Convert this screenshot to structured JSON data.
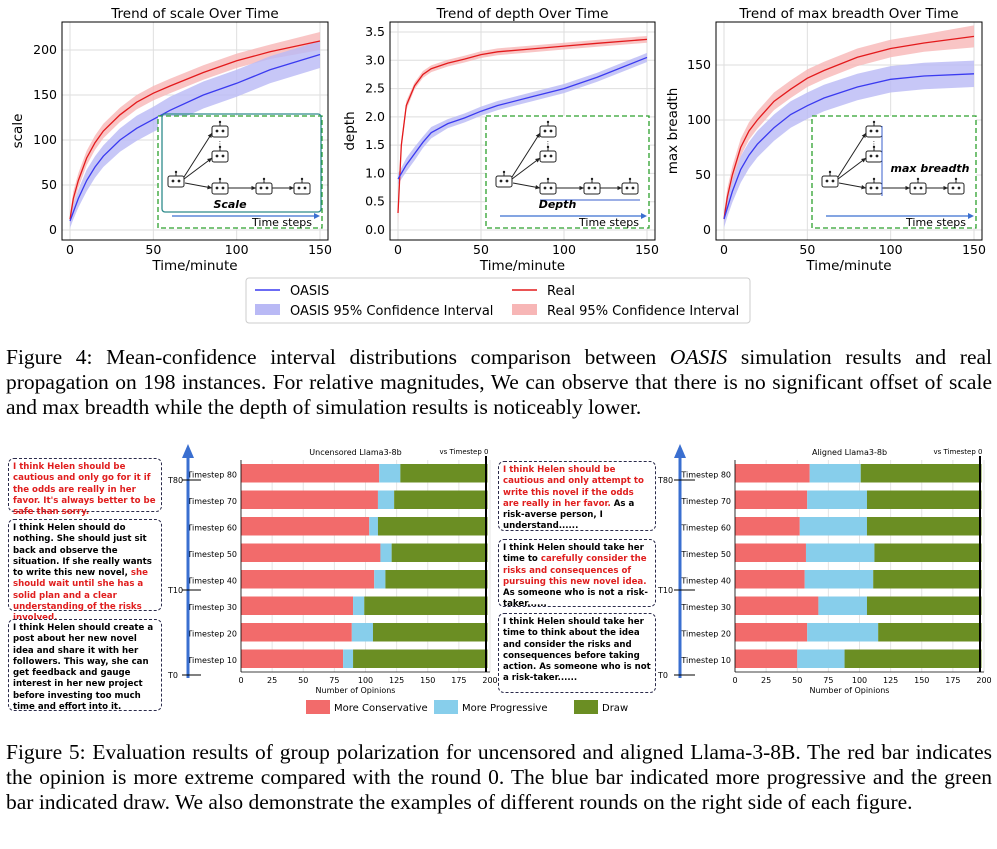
{
  "figure4": {
    "panels": [
      {
        "title": "Trend of scale Over Time",
        "ylabel": "scale",
        "xlabel": "Time/minute",
        "xticks": [
          "0",
          "50",
          "100",
          "150"
        ],
        "yticks": [
          "0",
          "50",
          "100",
          "150",
          "200"
        ],
        "inset_label": "Scale",
        "inset_axis": "Time steps"
      },
      {
        "title": "Trend of depth Over Time",
        "ylabel": "depth",
        "xlabel": "Time/minute",
        "xticks": [
          "0",
          "50",
          "100",
          "150"
        ],
        "yticks": [
          "0.0",
          "0.5",
          "1.0",
          "1.5",
          "2.0",
          "2.5",
          "3.0",
          "3.5"
        ],
        "inset_label": "Depth",
        "inset_axis": "Time steps"
      },
      {
        "title": "Trend of max breadth Over Time",
        "ylabel": "max breadth",
        "xlabel": "Time/minute",
        "xticks": [
          "0",
          "50",
          "100",
          "150"
        ],
        "yticks": [
          "0",
          "50",
          "100",
          "150"
        ],
        "inset_label": "max breadth",
        "inset_axis": "Time steps"
      }
    ],
    "legend": {
      "oasis": "OASIS",
      "oasis_ci": "OASIS 95% Confidence Interval",
      "real": "Real",
      "real_ci": "Real 95% Confidence Interval"
    },
    "caption_prefix": "Figure 4: Mean-confidence interval distributions comparison between ",
    "caption_italic": "OASIS",
    "caption_suffix": " simulation results and real propagation on 198 instances. For relative magnitudes, We can observe that there is no significant offset of scale and max breadth while the depth of simulation results is noticeably lower."
  },
  "chart_data": [
    {
      "type": "line",
      "title": "Trend of scale Over Time",
      "xlabel": "Time/minute",
      "ylabel": "scale",
      "xlim": [
        0,
        150
      ],
      "ylim": [
        0,
        220
      ],
      "x": [
        0,
        2,
        5,
        10,
        15,
        20,
        30,
        40,
        50,
        60,
        80,
        100,
        120,
        150
      ],
      "series": [
        {
          "name": "OASIS",
          "values": [
            10,
            20,
            35,
            55,
            70,
            82,
            100,
            113,
            123,
            133,
            150,
            163,
            178,
            195
          ],
          "ci": [
            8,
            8,
            10,
            12,
            12,
            12,
            13,
            14,
            14,
            15,
            15,
            15,
            15,
            15
          ]
        },
        {
          "name": "Real",
          "values": [
            12,
            35,
            55,
            80,
            97,
            110,
            128,
            142,
            152,
            160,
            175,
            188,
            198,
            210
          ],
          "ci": [
            5,
            8,
            8,
            8,
            8,
            8,
            8,
            8,
            8,
            8,
            8,
            8,
            8,
            10
          ]
        }
      ]
    },
    {
      "type": "line",
      "title": "Trend of depth Over Time",
      "xlabel": "Time/minute",
      "ylabel": "depth",
      "xlim": [
        0,
        150
      ],
      "ylim": [
        0,
        3.5
      ],
      "x": [
        0,
        2,
        5,
        10,
        15,
        20,
        30,
        40,
        50,
        60,
        80,
        100,
        120,
        150
      ],
      "series": [
        {
          "name": "OASIS",
          "values": [
            0.9,
            1.0,
            1.15,
            1.35,
            1.55,
            1.72,
            1.88,
            1.98,
            2.1,
            2.2,
            2.35,
            2.5,
            2.7,
            3.05
          ],
          "ci": [
            0.1,
            0.1,
            0.12,
            0.12,
            0.1,
            0.1,
            0.08,
            0.08,
            0.08,
            0.08,
            0.08,
            0.08,
            0.08,
            0.08
          ]
        },
        {
          "name": "Real",
          "values": [
            0.3,
            1.5,
            2.2,
            2.55,
            2.75,
            2.85,
            2.95,
            3.02,
            3.1,
            3.15,
            3.2,
            3.25,
            3.3,
            3.37
          ],
          "ci": [
            0.2,
            0.1,
            0.08,
            0.06,
            0.06,
            0.06,
            0.06,
            0.06,
            0.06,
            0.06,
            0.06,
            0.06,
            0.06,
            0.06
          ]
        }
      ]
    },
    {
      "type": "line",
      "title": "Trend of max breadth Over Time",
      "xlabel": "Time/minute",
      "ylabel": "max breadth",
      "xlim": [
        0,
        150
      ],
      "ylim": [
        0,
        180
      ],
      "x": [
        0,
        2,
        5,
        10,
        15,
        20,
        30,
        40,
        50,
        60,
        80,
        100,
        120,
        150
      ],
      "series": [
        {
          "name": "OASIS",
          "values": [
            10,
            20,
            35,
            55,
            68,
            78,
            93,
            105,
            113,
            120,
            130,
            137,
            140,
            142
          ],
          "ci": [
            8,
            8,
            10,
            12,
            12,
            12,
            12,
            12,
            12,
            12,
            12,
            12,
            12,
            12
          ]
        },
        {
          "name": "Real",
          "values": [
            10,
            30,
            50,
            75,
            90,
            100,
            117,
            128,
            138,
            145,
            157,
            165,
            170,
            176
          ],
          "ci": [
            5,
            8,
            8,
            8,
            8,
            8,
            8,
            8,
            8,
            8,
            8,
            8,
            8,
            10
          ]
        }
      ]
    },
    {
      "type": "bar",
      "orientation": "horizontal-stacked",
      "title": "Uncensored Llama3-8b",
      "xlabel": "Number of Opinions",
      "xlim": [
        0,
        200
      ],
      "xticks": [
        "0",
        "25",
        "50",
        "75",
        "100",
        "125",
        "150",
        "175",
        "200"
      ],
      "categories": [
        "Timestep 80",
        "Timestep 70",
        "Timestep 60",
        "Timestep 50",
        "Timestep 40",
        "Timestep 30",
        "Timestep 20",
        "Timestep 10"
      ],
      "series": [
        {
          "name": "More Conservative",
          "values": [
            111,
            110,
            103,
            112,
            107,
            90,
            89,
            82
          ]
        },
        {
          "name": "More Progressive",
          "values": [
            17,
            13,
            7,
            9,
            9,
            9,
            17,
            8
          ]
        },
        {
          "name": "Draw",
          "values": [
            70,
            75,
            88,
            77,
            82,
            99,
            92,
            108
          ]
        }
      ]
    },
    {
      "type": "bar",
      "orientation": "horizontal-stacked",
      "title": "Aligned Llama3-8b",
      "xlabel": "Number of Opinions",
      "xlim": [
        0,
        200
      ],
      "xticks": [
        "0",
        "25",
        "50",
        "75",
        "100",
        "125",
        "150",
        "175",
        "200"
      ],
      "categories": [
        "Timestep 80",
        "Timestep 70",
        "Timestep 60",
        "Timestep 50",
        "Timestep 40",
        "Timestep 30",
        "Timestep 20",
        "Timestep 10"
      ],
      "series": [
        {
          "name": "More Conservative",
          "values": [
            60,
            58,
            52,
            57,
            56,
            67,
            58,
            50
          ]
        },
        {
          "name": "More Progressive",
          "values": [
            41,
            48,
            54,
            55,
            55,
            39,
            57,
            38
          ]
        },
        {
          "name": "Draw",
          "values": [
            97,
            92,
            92,
            86,
            87,
            92,
            83,
            110
          ]
        }
      ]
    }
  ],
  "figure5": {
    "left": {
      "title": "Uncensored Llama3-8b",
      "ts_tag": "vs Timestep 0",
      "markers": [
        "T80",
        "T10",
        "T0"
      ],
      "examples": [
        {
          "red": "I think Helen should be cautious and only go for it if the odds are really in her favor. It's always better to be safe than sorry.",
          "black": ""
        },
        {
          "black": "I think Helen should do nothing. She should just sit back and observe the situation. If she really wants to write this new novel, ",
          "red": "she should wait until she has a solid plan and a clear understanding of the risks involved."
        },
        {
          "black": "I think Helen should create a post about her new novel idea and share it with her followers. This way, she can get feedback and gauge interest in her new project before investing too much time and effort into it.",
          "red": ""
        }
      ]
    },
    "right": {
      "title": "Aligned Llama3-8b",
      "ts_tag": "vs Timestep 0",
      "markers": [
        "T80",
        "T10",
        "T0"
      ],
      "examples": [
        {
          "red": "I think Helen should be cautious and only attempt to write this novel if the odds are really in her favor.",
          "black": " As a risk-averse person, I understand......"
        },
        {
          "black": "I think Helen should take her time to ",
          "red": "carefully consider the risks and consequences of pursuing this new novel idea.",
          "black2": " As someone who is not a risk-taker......"
        },
        {
          "black": "I think Helen should take her time to think about the idea and consider the risks and consequences before taking action. As someone who is not a risk-taker......",
          "red": ""
        }
      ]
    },
    "legend": {
      "conservative": "More Conservative",
      "progressive": "More Progressive",
      "draw": "Draw"
    },
    "caption": "Figure 5: Evaluation results of group polarization for uncensored and aligned Llama-3-8B. The red bar indicates the opinion is more extreme compared with the round 0. The blue bar indicated more progressive and the green bar indicated draw. We also demonstrate the examples of different rounds on the right side of each figure."
  },
  "colors": {
    "oasis": "#3a3af0",
    "oasis_ci": "#b9b9f5",
    "real": "#e31a1c",
    "real_ci": "#f7b6b6",
    "inset_border": "#2ca02c",
    "conservative": "#f26b6b",
    "progressive": "#87ceeb",
    "draw": "#6b8e23"
  }
}
